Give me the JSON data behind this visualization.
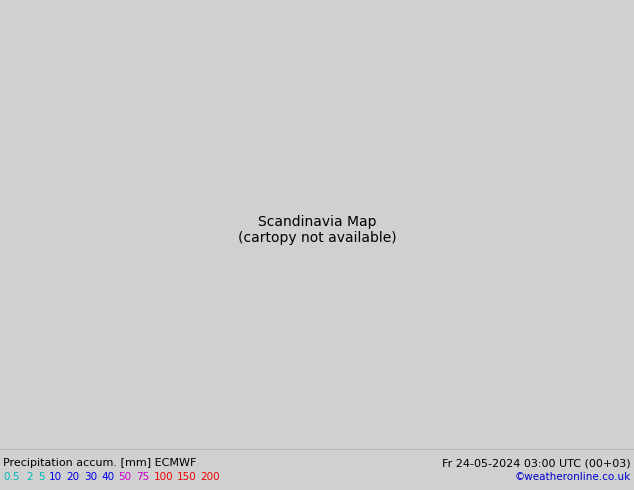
{
  "title_left": "Precipitation accum. [mm] ECMWF",
  "title_right": "Fr 24-05-2024 03:00 UTC (00+03)",
  "credit": "©weatheronline.co.uk",
  "legend_values": [
    "0.5",
    "2",
    "5",
    "10",
    "20",
    "30",
    "40",
    "50",
    "75",
    "100",
    "150",
    "200"
  ],
  "legend_text_colors": [
    "#00bbbb",
    "#00bbbb",
    "#00bbbb",
    "#0000ee",
    "#0000ee",
    "#0000ee",
    "#0000ee",
    "#cc00cc",
    "#cc00cc",
    "#ee0000",
    "#ee0000",
    "#ee0000"
  ],
  "ocean_color": "#d0d0d0",
  "land_color": "#b8ddb8",
  "border_color": "#444444",
  "precip_blue_dark": "#3399ff",
  "precip_blue_mid": "#66bbff",
  "precip_blue_light": "#99ddff",
  "precip_cyan": "#aaeeff",
  "fig_width": 6.34,
  "fig_height": 4.9,
  "dpi": 100,
  "extent": [
    3.0,
    35.0,
    54.0,
    72.0
  ],
  "map_xlim": [
    3.0,
    35.0
  ],
  "map_ylim": [
    54.0,
    72.0
  ]
}
